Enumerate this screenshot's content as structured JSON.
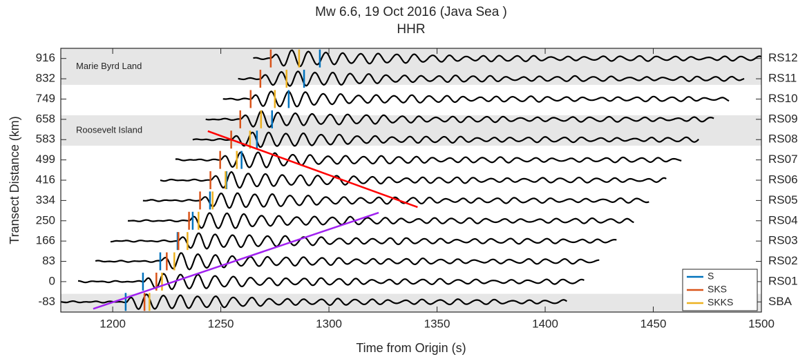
{
  "chart_data": {
    "type": "record-section",
    "title": "Mw 6.6, 19 Oct 2016 (Java Sea )",
    "subtitle": "HHR",
    "x_label": "Time from Origin (s)",
    "y_label": "Transect Distance (km)",
    "categories": [
      "SBA",
      "RS01",
      "RS02",
      "RS03",
      "RS04",
      "RS05",
      "RS06",
      "RS07",
      "RS08",
      "RS09",
      "RS10",
      "RS11",
      "RS12"
    ],
    "xlim": [
      1176,
      1500
    ],
    "xticks": [
      1200,
      1250,
      1300,
      1350,
      1400,
      1450,
      1500
    ],
    "ylim": [
      -0.5,
      12.5
    ],
    "yticks": [
      {
        "value": 0,
        "label": "-83"
      },
      {
        "value": 1,
        "label": "0"
      },
      {
        "value": 2,
        "label": "83"
      },
      {
        "value": 3,
        "label": "166"
      },
      {
        "value": 4,
        "label": "250"
      },
      {
        "value": 5,
        "label": "334"
      },
      {
        "value": 6,
        "label": "416"
      },
      {
        "value": 7,
        "label": "499"
      },
      {
        "value": 8,
        "label": "583"
      },
      {
        "value": 9,
        "label": "658"
      },
      {
        "value": 10,
        "label": "749"
      },
      {
        "value": 11,
        "label": "832"
      },
      {
        "value": 12,
        "label": "916"
      }
    ],
    "traces": [
      {
        "start": 1176,
        "end": 1410
      },
      {
        "start": 1184,
        "end": 1418
      },
      {
        "start": 1192,
        "end": 1425
      },
      {
        "start": 1199,
        "end": 1433
      },
      {
        "start": 1207,
        "end": 1441
      },
      {
        "start": 1214,
        "end": 1448
      },
      {
        "start": 1222,
        "end": 1456
      },
      {
        "start": 1229,
        "end": 1463
      },
      {
        "start": 1237,
        "end": 1471
      },
      {
        "start": 1243,
        "end": 1478
      },
      {
        "start": 1251,
        "end": 1485
      },
      {
        "start": 1258,
        "end": 1492
      },
      {
        "start": 1265,
        "end": 1500
      }
    ],
    "series": [
      {
        "name": "S",
        "color": "#0072bd",
        "values": [
          1206,
          1214,
          1222,
          1230,
          1237,
          1245,
          1252.6,
          1259.6,
          1266.7,
          1273.7,
          1281.4,
          1288.5,
          1295.8
        ]
      },
      {
        "name": "SKS",
        "color": "#d95319",
        "values": [
          1214.7,
          1220.2,
          1225,
          1230.4,
          1235.3,
          1240.4,
          1245.2,
          1249.7,
          1254.8,
          1259,
          1263.8,
          1268.3,
          1273.1
        ]
      },
      {
        "name": "SKKS",
        "color": "#edb120",
        "values": [
          1217,
          1222.8,
          1228.5,
          1234.6,
          1239.7,
          1246.2,
          1252.2,
          1257.4,
          1263.5,
          1268.6,
          1275,
          1280.4,
          1286.2
        ]
      }
    ],
    "lines": [
      {
        "color": "#ff0000",
        "x": [
          1244,
          1341
        ],
        "y": [
          8.42,
          4.67
        ]
      },
      {
        "color": "#a020f0",
        "x": [
          1191,
          1323
        ],
        "y": [
          -0.34,
          4.4
        ]
      }
    ],
    "bands": [
      {
        "y": [
          -0.5,
          0.4
        ]
      },
      {
        "y": [
          7.7,
          9.2
        ],
        "label": "Roosevelt Island"
      },
      {
        "y": [
          10.7,
          12.5
        ],
        "label": "Marie Byrd Land"
      }
    ],
    "band_color": "#e6e6e6",
    "legend": "lower right"
  }
}
